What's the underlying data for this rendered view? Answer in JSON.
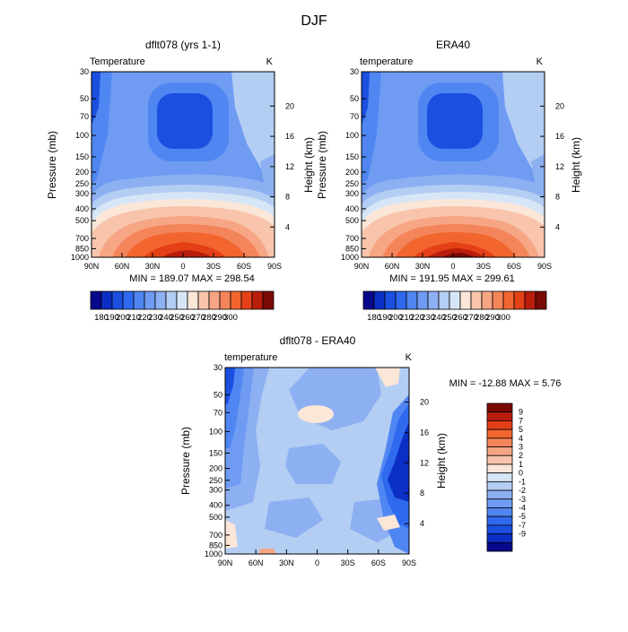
{
  "figure": {
    "title": "DJF"
  },
  "colors": {
    "cold_scale": [
      "#08088a",
      "#0b2fc4",
      "#1a4fe0",
      "#2f6aee",
      "#4f86f2",
      "#6f9bf2",
      "#8db0f2",
      "#b3cdf3",
      "#d7e6f6",
      "#f8e1d2",
      "#f8c5ac",
      "#f6a684",
      "#f4845a",
      "#f2652f",
      "#e44017",
      "#b91d0b",
      "#7a0a05"
    ],
    "temp_legend": [
      "#08088a",
      "#0b2fc4",
      "#1a4fe0",
      "#2f6aee",
      "#4f86f2",
      "#6f9bf2",
      "#8db0f2",
      "#b3cdf3",
      "#d7e6f6",
      "#fbe6d8",
      "#f8c5ac",
      "#f6a684",
      "#f4845a",
      "#f2652f",
      "#e44017",
      "#b91d0b",
      "#7a0a05"
    ],
    "diff_legend": [
      "#7a0a05",
      "#b91d0b",
      "#e44017",
      "#f2652f",
      "#f4845a",
      "#f6a684",
      "#f8c5ac",
      "#fbe6d8",
      "#d7e6f6",
      "#b3cdf3",
      "#8db0f2",
      "#6f9bf2",
      "#4f86f2",
      "#2f6aee",
      "#1a4fe0",
      "#0b2fc4",
      "#08088a"
    ]
  },
  "chart_data": [
    {
      "type": "heatmap",
      "panel": "model",
      "title": "dflt078 (yrs 1-1)",
      "left_label": "Temperature",
      "right_label": "K",
      "ylabel": "Pressure (mb)",
      "y2label": "Height (km)",
      "x_ticks": [
        "90N",
        "60N",
        "30N",
        "0",
        "30S",
        "60S",
        "90S"
      ],
      "y_ticks": [
        "30",
        "50",
        "70",
        "100",
        "150",
        "200",
        "250",
        "300",
        "400",
        "500",
        "700",
        "850",
        "1000"
      ],
      "y2_ticks": [
        "20",
        "16",
        "12",
        "8",
        "4"
      ],
      "ylim": [
        30,
        1000
      ],
      "y_scale": "log",
      "min_max_text": "MIN = 189.07   MAX = 298.54",
      "min": 189.07,
      "max": 298.54,
      "colorbar_labels": [
        "180",
        "190",
        "200",
        "210",
        "220",
        "230",
        "240",
        "250",
        "260",
        "270",
        "280",
        "290",
        "300"
      ]
    },
    {
      "type": "heatmap",
      "panel": "reanalysis",
      "title": "ERA40",
      "left_label": "temperature",
      "right_label": "K",
      "ylabel": "Pressure (mb)",
      "y2label": "Height (km)",
      "x_ticks": [
        "90N",
        "60N",
        "30N",
        "0",
        "30S",
        "60S",
        "90S"
      ],
      "y_ticks": [
        "30",
        "50",
        "70",
        "100",
        "150",
        "200",
        "250",
        "300",
        "400",
        "500",
        "700",
        "850",
        "1000"
      ],
      "y2_ticks": [
        "20",
        "16",
        "12",
        "8",
        "4"
      ],
      "ylim": [
        30,
        1000
      ],
      "y_scale": "log",
      "min_max_text": "MIN = 191.95   MAX = 299.61",
      "min": 191.95,
      "max": 299.61,
      "colorbar_labels": [
        "180",
        "190",
        "200",
        "210",
        "220",
        "230",
        "240",
        "250",
        "260",
        "270",
        "280",
        "290",
        "300"
      ]
    },
    {
      "type": "heatmap",
      "panel": "difference",
      "title": "dflt078 - ERA40",
      "left_label": "temperature",
      "right_label": "K",
      "ylabel": "Pressure (mb)",
      "y2label": "Height (km)",
      "x_ticks": [
        "90N",
        "60N",
        "30N",
        "0",
        "30S",
        "60S",
        "90S"
      ],
      "y_ticks": [
        "30",
        "50",
        "70",
        "100",
        "150",
        "200",
        "250",
        "300",
        "400",
        "500",
        "700",
        "850",
        "1000"
      ],
      "y2_ticks": [
        "20",
        "16",
        "12",
        "8",
        "4"
      ],
      "ylim": [
        30,
        1000
      ],
      "y_scale": "log",
      "min_max_text": "MIN = -12.88   MAX =    5.76",
      "min": -12.88,
      "max": 5.76,
      "colorbar_labels": [
        "9",
        "7",
        "5",
        "4",
        "3",
        "2",
        "1",
        "0",
        "-1",
        "-2",
        "-3",
        "-4",
        "-5",
        "-7",
        "-9"
      ]
    }
  ]
}
